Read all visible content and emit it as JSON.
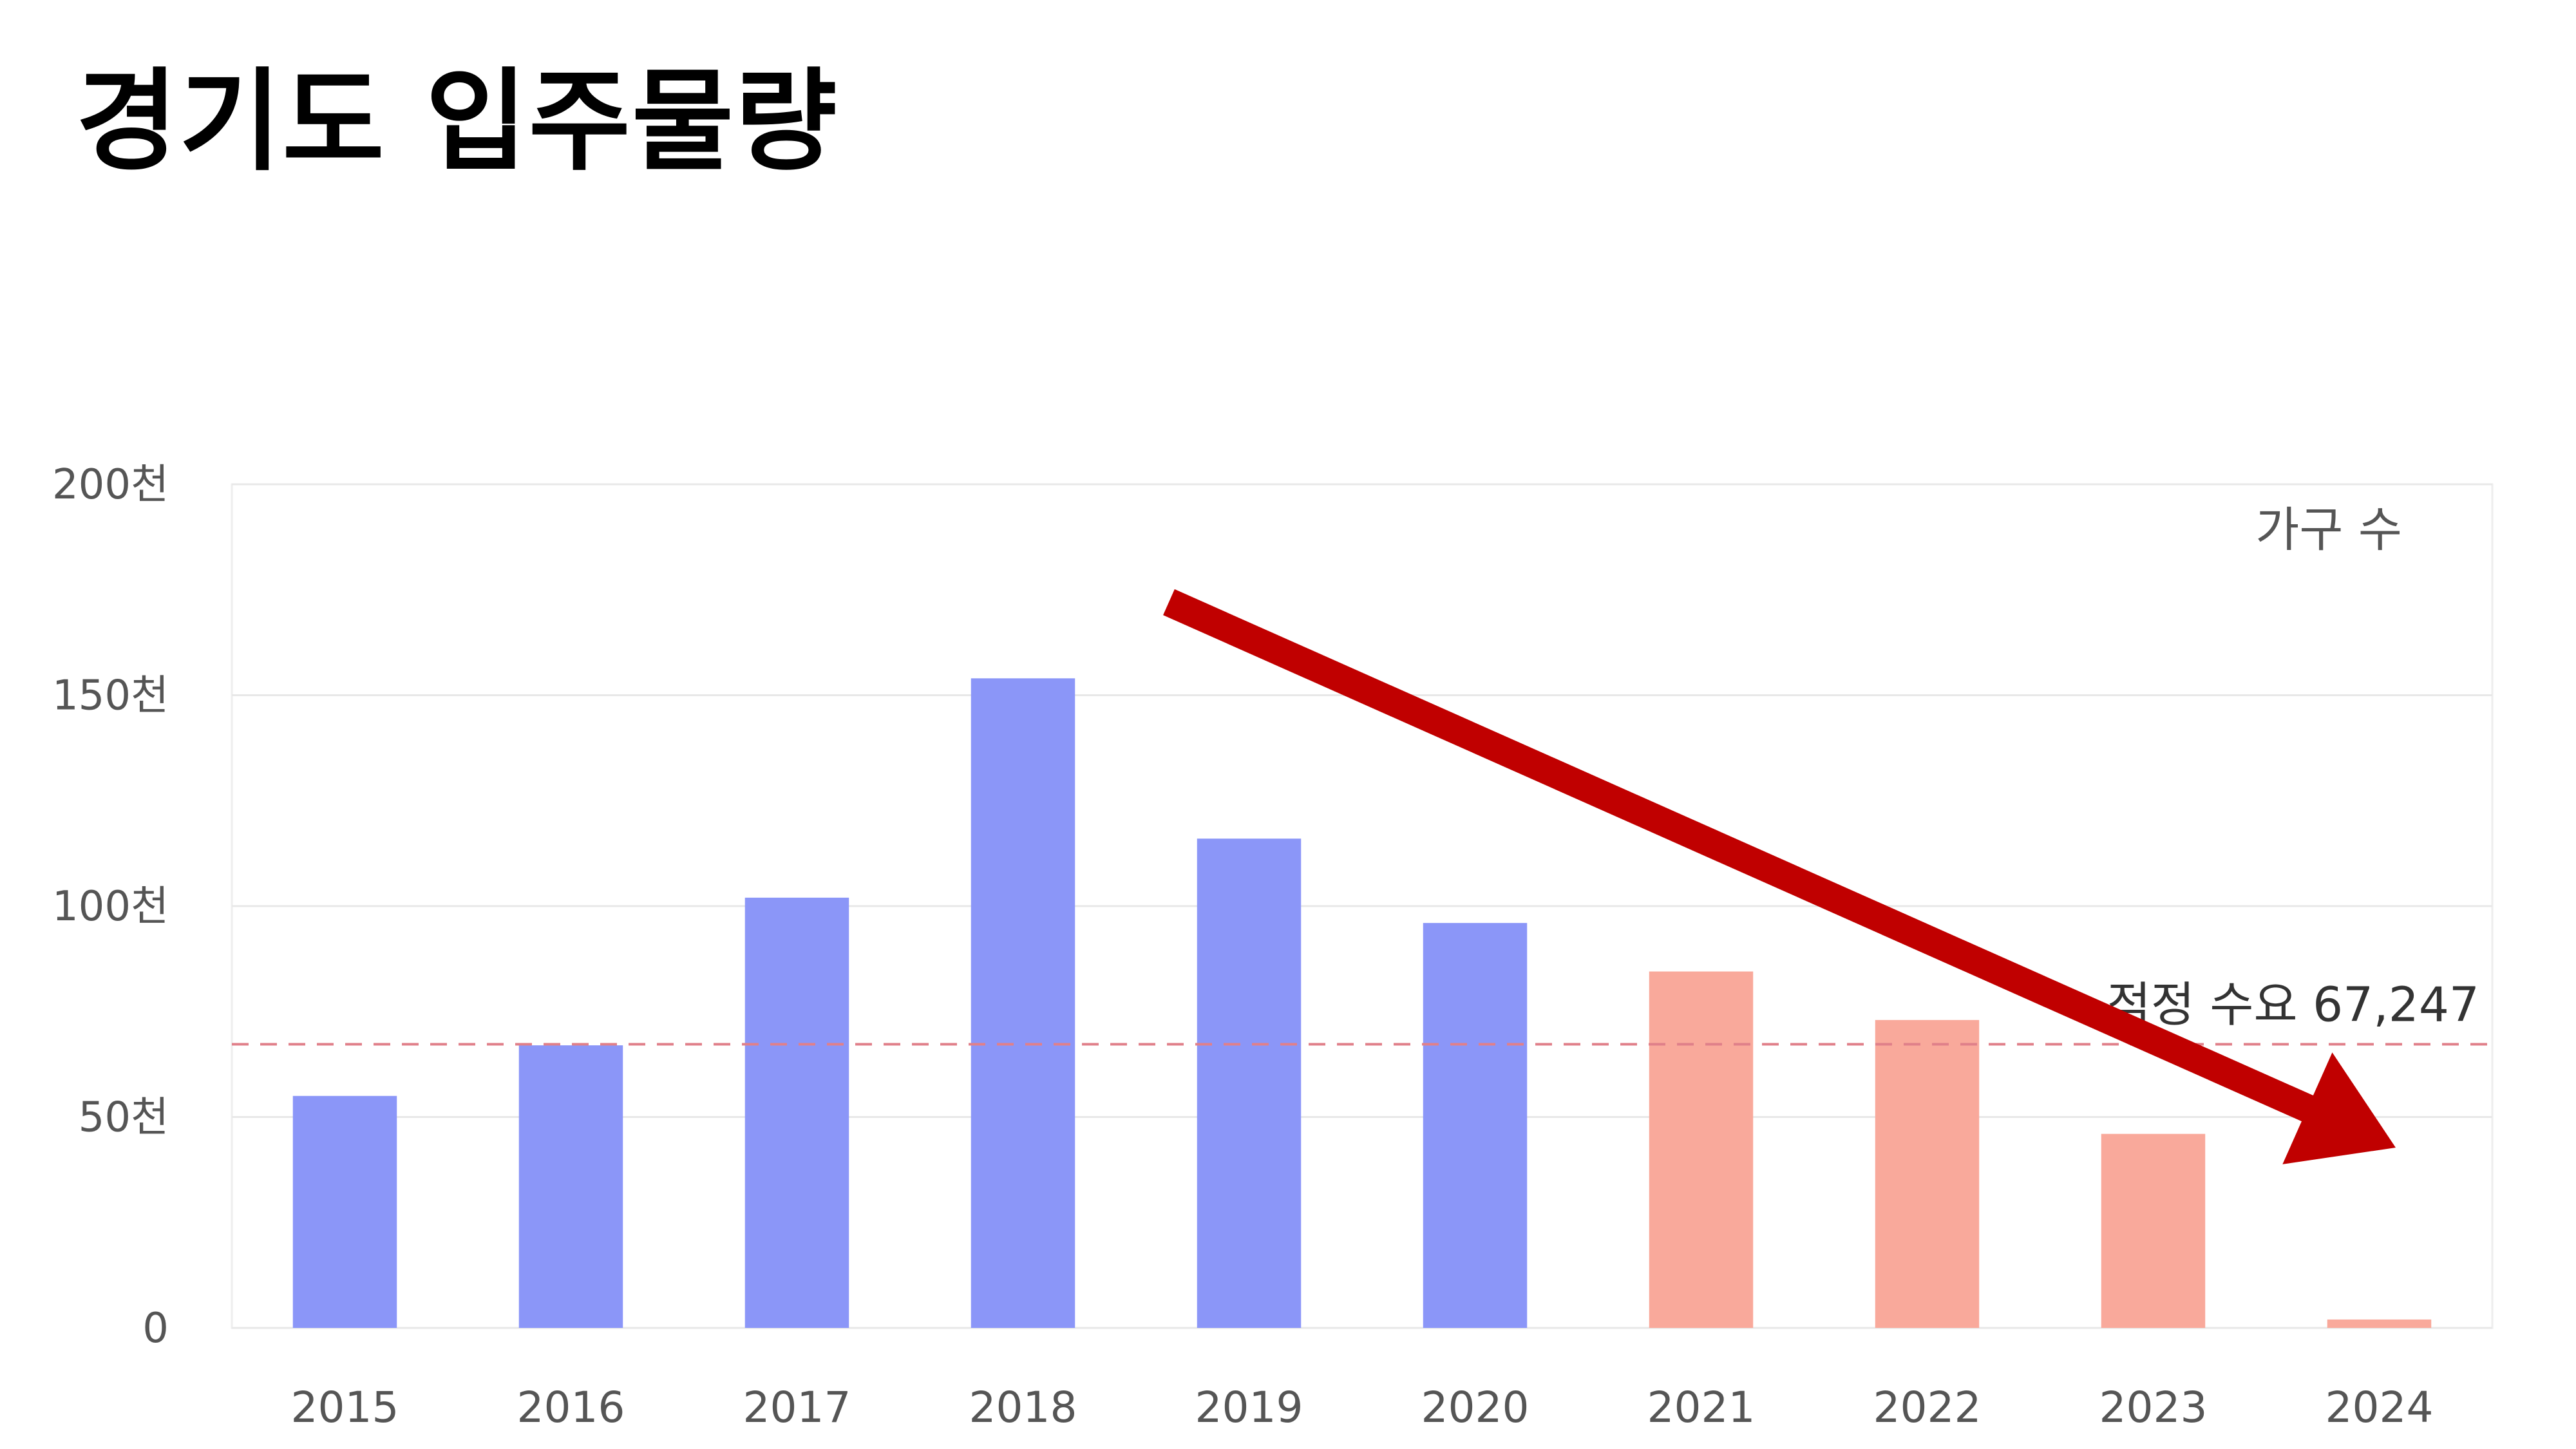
{
  "page": {
    "title": "경기도  입주물량"
  },
  "chart_data": {
    "type": "bar",
    "title": "경기도  입주물량",
    "xlabel": "",
    "ylabel": "",
    "ylim": [
      0,
      200000
    ],
    "y_ticks": [
      {
        "value": 0,
        "label": "0"
      },
      {
        "value": 50000,
        "label": "50천"
      },
      {
        "value": 100000,
        "label": "100천"
      },
      {
        "value": 150000,
        "label": "150천"
      },
      {
        "value": 200000,
        "label": "200천"
      }
    ],
    "categories": [
      "2015",
      "2016",
      "2017",
      "2018",
      "2019",
      "2020",
      "2021",
      "2022",
      "2023",
      "2024"
    ],
    "series": [
      {
        "name": "가구 수",
        "values": [
          55000,
          67000,
          102000,
          154000,
          116000,
          96000,
          84500,
          73000,
          46000,
          2000
        ],
        "colors": [
          "#8b96f8",
          "#8b96f8",
          "#8b96f8",
          "#8b96f8",
          "#8b96f8",
          "#8b96f8",
          "#f9a99b",
          "#f9a99b",
          "#f9a99b",
          "#f9a99b"
        ]
      }
    ],
    "legend": {
      "label": "가구 수",
      "position": "top-right"
    },
    "reference_line": {
      "value": 67247,
      "label": "적정 수요 67,247",
      "color": "#e0808a",
      "style": "dashed"
    },
    "annotations": [
      {
        "type": "arrow",
        "color": "#c00000",
        "direction": "downward trend",
        "from_category": "2018",
        "to_category": "2024"
      }
    ],
    "grid": true
  }
}
